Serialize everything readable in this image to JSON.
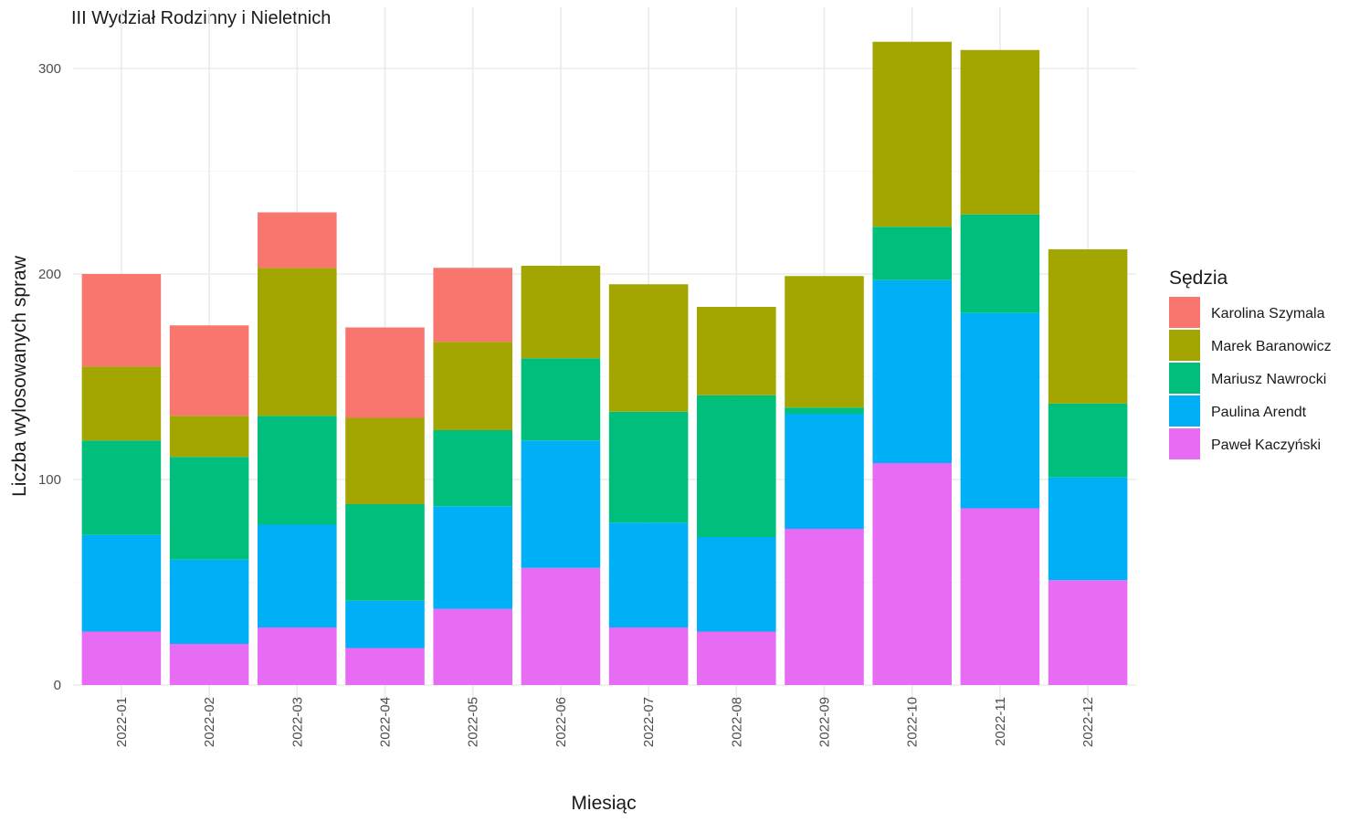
{
  "chart_data": {
    "type": "bar",
    "stacked": true,
    "title": "III Wydział Rodzinny i Nieletnich",
    "xlabel": "Miesiąc",
    "ylabel": "Liczba wylosowanych spraw",
    "ylim": [
      0,
      320
    ],
    "y_ticks": [
      0,
      100,
      200,
      300
    ],
    "grid": true,
    "legend_position": "right",
    "legend_title": "Sędzia",
    "categories": [
      "2022-01",
      "2022-02",
      "2022-03",
      "2022-04",
      "2022-05",
      "2022-06",
      "2022-07",
      "2022-08",
      "2022-09",
      "2022-10",
      "2022-11",
      "2022-12"
    ],
    "series": [
      {
        "name": "Karolina Szymala",
        "color": "#F8766D",
        "values": [
          45,
          44,
          27,
          44,
          36,
          0,
          0,
          0,
          0,
          0,
          0,
          0
        ]
      },
      {
        "name": "Marek Baranowicz",
        "color": "#A3A500",
        "values": [
          36,
          20,
          72,
          42,
          43,
          45,
          62,
          43,
          64,
          90,
          80,
          75
        ]
      },
      {
        "name": "Mariusz Nawrocki",
        "color": "#00BF7D",
        "values": [
          46,
          50,
          53,
          47,
          37,
          40,
          54,
          69,
          3,
          26,
          48,
          36
        ]
      },
      {
        "name": "Paulina Arendt",
        "color": "#00B0F6",
        "values": [
          47,
          41,
          50,
          23,
          50,
          62,
          51,
          46,
          56,
          89,
          95,
          50
        ]
      },
      {
        "name": "Paweł Kaczyński",
        "color": "#E76BF3",
        "values": [
          26,
          20,
          28,
          18,
          37,
          57,
          28,
          26,
          76,
          108,
          86,
          51
        ]
      }
    ]
  }
}
